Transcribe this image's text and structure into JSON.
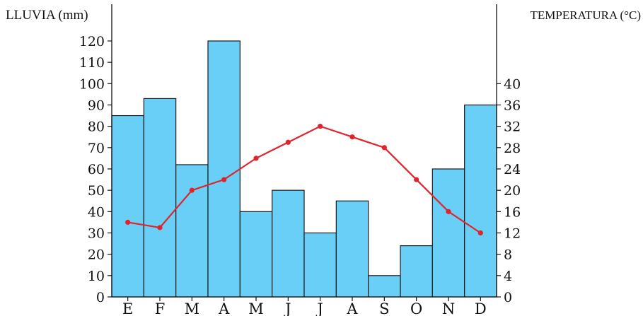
{
  "chart_data": {
    "type": "bar",
    "categories": [
      "E",
      "F",
      "M",
      "A",
      "M",
      "J",
      "J",
      "A",
      "S",
      "O",
      "N",
      "D"
    ],
    "left_axis_label": "LLUVIA (mm)",
    "right_axis_label": "TEMPERATURA (°C)",
    "left_ylim": [
      0,
      120
    ],
    "left_ticks": [
      0,
      10,
      20,
      30,
      40,
      50,
      60,
      70,
      80,
      90,
      100,
      110,
      120
    ],
    "right_ylim": [
      0,
      48
    ],
    "right_ticks": [
      0,
      4,
      8,
      12,
      16,
      20,
      24,
      28,
      32,
      36,
      40
    ],
    "grid": false,
    "series": [
      {
        "type": "bar",
        "axis": "left",
        "color": "#6acff6",
        "values": [
          85,
          93,
          62,
          120,
          40,
          50,
          30,
          45,
          10,
          24,
          60,
          90
        ]
      },
      {
        "type": "line",
        "axis": "right",
        "color": "#e0242b",
        "values": [
          14,
          13,
          20,
          22,
          26,
          29,
          32,
          30,
          28,
          22,
          16,
          12
        ]
      }
    ]
  }
}
